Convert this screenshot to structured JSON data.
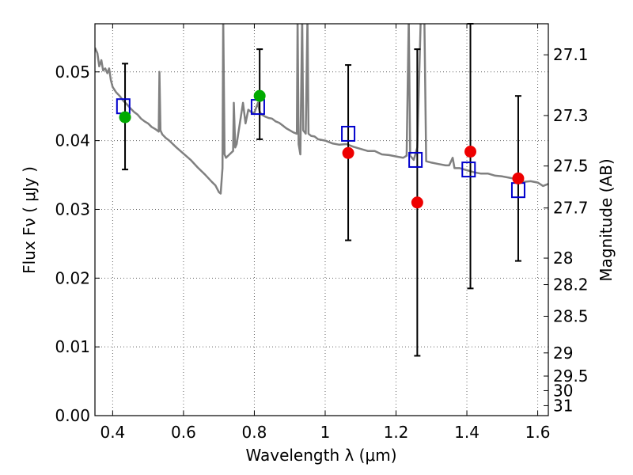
{
  "chart_data": {
    "type": "scatter",
    "xlabel": "Wavelength  λ (μm)",
    "ylabel": "Flux  Fν  ( μJy )",
    "ylabel_right": "Magnitude (AB)",
    "xlim": [
      0.35,
      1.63
    ],
    "ylim": [
      0.0,
      0.057
    ],
    "grid": true,
    "x_ticks": [
      {
        "v": 0.4,
        "label": "0.4"
      },
      {
        "v": 0.6,
        "label": "0.6"
      },
      {
        "v": 0.8,
        "label": "0.8"
      },
      {
        "v": 1.0,
        "label": "1"
      },
      {
        "v": 1.2,
        "label": "1.2"
      },
      {
        "v": 1.4,
        "label": "1.4"
      },
      {
        "v": 1.6,
        "label": "1.6"
      }
    ],
    "y_ticks": [
      {
        "v": 0.0,
        "label": "0.00"
      },
      {
        "v": 0.01,
        "label": "0.01"
      },
      {
        "v": 0.02,
        "label": "0.02"
      },
      {
        "v": 0.03,
        "label": "0.03"
      },
      {
        "v": 0.04,
        "label": "0.04"
      },
      {
        "v": 0.05,
        "label": "0.05"
      }
    ],
    "right_ticks": [
      {
        "mag": 27.1,
        "label": "27.1"
      },
      {
        "mag": 27.3,
        "label": "27.3"
      },
      {
        "mag": 27.5,
        "label": "27.5"
      },
      {
        "mag": 27.7,
        "label": "27.7"
      },
      {
        "mag": 28.0,
        "label": "28"
      },
      {
        "mag": 28.2,
        "label": "28.2"
      },
      {
        "mag": 28.5,
        "label": "28.5"
      },
      {
        "mag": 29.0,
        "label": "29"
      },
      {
        "mag": 29.5,
        "label": "29.5"
      },
      {
        "mag": 30.0,
        "label": "30"
      },
      {
        "mag": 31.0,
        "label": "31"
      }
    ],
    "series": [
      {
        "kind": "line",
        "color": "#808080",
        "points": [
          [
            0.35,
            0.0535
          ],
          [
            0.357,
            0.0527
          ],
          [
            0.362,
            0.0508
          ],
          [
            0.368,
            0.0517
          ],
          [
            0.373,
            0.0502
          ],
          [
            0.379,
            0.0505
          ],
          [
            0.385,
            0.0498
          ],
          [
            0.39,
            0.0505
          ],
          [
            0.395,
            0.0488
          ],
          [
            0.4,
            0.0478
          ],
          [
            0.41,
            0.047
          ],
          [
            0.42,
            0.0465
          ],
          [
            0.43,
            0.0458
          ],
          [
            0.44,
            0.0453
          ],
          [
            0.45,
            0.0447
          ],
          [
            0.46,
            0.0442
          ],
          [
            0.47,
            0.0438
          ],
          [
            0.48,
            0.0432
          ],
          [
            0.49,
            0.0428
          ],
          [
            0.5,
            0.0425
          ],
          [
            0.51,
            0.042
          ],
          [
            0.52,
            0.0417
          ],
          [
            0.53,
            0.0413
          ],
          [
            0.532,
            0.05
          ],
          [
            0.535,
            0.0415
          ],
          [
            0.54,
            0.0409
          ],
          [
            0.55,
            0.0404
          ],
          [
            0.56,
            0.04
          ],
          [
            0.57,
            0.0395
          ],
          [
            0.58,
            0.039
          ],
          [
            0.6,
            0.0381
          ],
          [
            0.62,
            0.0372
          ],
          [
            0.64,
            0.0361
          ],
          [
            0.66,
            0.0351
          ],
          [
            0.68,
            0.034
          ],
          [
            0.69,
            0.0335
          ],
          [
            0.7,
            0.0325
          ],
          [
            0.705,
            0.0323
          ],
          [
            0.71,
            0.036
          ],
          [
            0.712,
            0.058
          ],
          [
            0.716,
            0.038
          ],
          [
            0.72,
            0.0375
          ],
          [
            0.73,
            0.038
          ],
          [
            0.74,
            0.0385
          ],
          [
            0.742,
            0.0455
          ],
          [
            0.746,
            0.039
          ],
          [
            0.75,
            0.0395
          ],
          [
            0.76,
            0.0428
          ],
          [
            0.768,
            0.0455
          ],
          [
            0.775,
            0.0425
          ],
          [
            0.783,
            0.0445
          ],
          [
            0.79,
            0.0442
          ],
          [
            0.8,
            0.044
          ],
          [
            0.81,
            0.0455
          ],
          [
            0.815,
            0.0442
          ],
          [
            0.82,
            0.0438
          ],
          [
            0.83,
            0.0435
          ],
          [
            0.84,
            0.0433
          ],
          [
            0.85,
            0.0432
          ],
          [
            0.86,
            0.0428
          ],
          [
            0.87,
            0.0426
          ],
          [
            0.88,
            0.0422
          ],
          [
            0.89,
            0.0418
          ],
          [
            0.9,
            0.0415
          ],
          [
            0.91,
            0.0412
          ],
          [
            0.92,
            0.041
          ],
          [
            0.922,
            0.058
          ],
          [
            0.925,
            0.0395
          ],
          [
            0.93,
            0.038
          ],
          [
            0.935,
            0.058
          ],
          [
            0.938,
            0.0415
          ],
          [
            0.945,
            0.041
          ],
          [
            0.95,
            0.058
          ],
          [
            0.953,
            0.041
          ],
          [
            0.96,
            0.0407
          ],
          [
            0.97,
            0.0406
          ],
          [
            0.98,
            0.0402
          ],
          [
            1.0,
            0.04
          ],
          [
            1.02,
            0.0396
          ],
          [
            1.04,
            0.0394
          ],
          [
            1.06,
            0.0395
          ],
          [
            1.08,
            0.0391
          ],
          [
            1.1,
            0.0388
          ],
          [
            1.12,
            0.0385
          ],
          [
            1.14,
            0.0385
          ],
          [
            1.16,
            0.038
          ],
          [
            1.18,
            0.0379
          ],
          [
            1.2,
            0.0377
          ],
          [
            1.22,
            0.0375
          ],
          [
            1.23,
            0.0378
          ],
          [
            1.236,
            0.058
          ],
          [
            1.24,
            0.0378
          ],
          [
            1.25,
            0.0372
          ],
          [
            1.26,
            0.039
          ],
          [
            1.27,
            0.058
          ],
          [
            1.28,
            0.058
          ],
          [
            1.285,
            0.037
          ],
          [
            1.3,
            0.0368
          ],
          [
            1.32,
            0.0366
          ],
          [
            1.34,
            0.0364
          ],
          [
            1.35,
            0.0364
          ],
          [
            1.36,
            0.0375
          ],
          [
            1.365,
            0.036
          ],
          [
            1.38,
            0.036
          ],
          [
            1.4,
            0.0357
          ],
          [
            1.42,
            0.0354
          ],
          [
            1.44,
            0.0352
          ],
          [
            1.46,
            0.0352
          ],
          [
            1.48,
            0.0349
          ],
          [
            1.5,
            0.0348
          ],
          [
            1.52,
            0.0346
          ],
          [
            1.54,
            0.0344
          ],
          [
            1.56,
            0.034
          ],
          [
            1.58,
            0.0341
          ],
          [
            1.6,
            0.0339
          ],
          [
            1.615,
            0.0334
          ],
          [
            1.63,
            0.0337
          ]
        ]
      },
      {
        "kind": "markers",
        "marker": "square",
        "color": "#0000cc",
        "points": [
          [
            0.43,
            0.045
          ],
          [
            0.81,
            0.0449
          ],
          [
            1.065,
            0.041
          ],
          [
            1.255,
            0.0372
          ],
          [
            1.405,
            0.0358
          ],
          [
            1.545,
            0.0328
          ]
        ]
      },
      {
        "kind": "markers",
        "marker": "circle",
        "color": "#00aa00",
        "points": [
          [
            0.435,
            0.0434
          ],
          [
            0.815,
            0.0465
          ]
        ]
      },
      {
        "kind": "markers",
        "marker": "circle",
        "color": "#ee0000",
        "points": [
          [
            1.065,
            0.0382
          ],
          [
            1.26,
            0.031
          ],
          [
            1.41,
            0.0384
          ],
          [
            1.545,
            0.0345
          ]
        ]
      },
      {
        "kind": "errorbars",
        "color": "#000000",
        "bars": [
          {
            "x": 0.435,
            "ylo": 0.0358,
            "yhi": 0.0512
          },
          {
            "x": 0.815,
            "ylo": 0.0402,
            "yhi": 0.0533
          },
          {
            "x": 1.065,
            "ylo": 0.0255,
            "yhi": 0.051
          },
          {
            "x": 1.26,
            "ylo": 0.0087,
            "yhi": 0.0533
          },
          {
            "x": 1.41,
            "ylo": 0.0185,
            "yhi": 0.057
          },
          {
            "x": 1.545,
            "ylo": 0.0225,
            "yhi": 0.0465
          }
        ]
      }
    ]
  }
}
